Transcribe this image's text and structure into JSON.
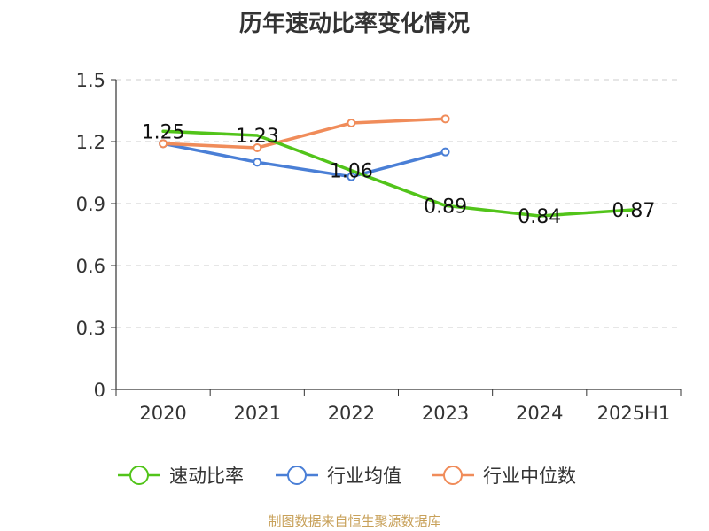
{
  "chart_data": {
    "type": "line",
    "title": "历年速动比率变化情况",
    "categories": [
      "2020",
      "2021",
      "2022",
      "2023",
      "2024",
      "2025H1"
    ],
    "yticks": [
      "0",
      "0.3",
      "0.6",
      "0.9",
      "1.2",
      "1.5"
    ],
    "ylim": [
      0,
      1.5
    ],
    "grid": true,
    "legend_position": "bottom",
    "series": [
      {
        "name": "速动比率",
        "color": "#52c41a",
        "values": [
          1.25,
          1.23,
          1.06,
          0.89,
          0.84,
          0.87
        ],
        "labels": [
          "1.25",
          "1.23",
          "1.06",
          "0.89",
          "0.84",
          "0.87"
        ],
        "markers": false
      },
      {
        "name": "行业均值",
        "color": "#4a7fd6",
        "values": [
          1.19,
          1.1,
          1.03,
          1.15,
          null,
          null
        ],
        "markers": true
      },
      {
        "name": "行业中位数",
        "color": "#f08c5a",
        "values": [
          1.19,
          1.17,
          1.29,
          1.31,
          null,
          null
        ],
        "markers": true
      }
    ]
  },
  "source": "制图数据来自恒生聚源数据库"
}
